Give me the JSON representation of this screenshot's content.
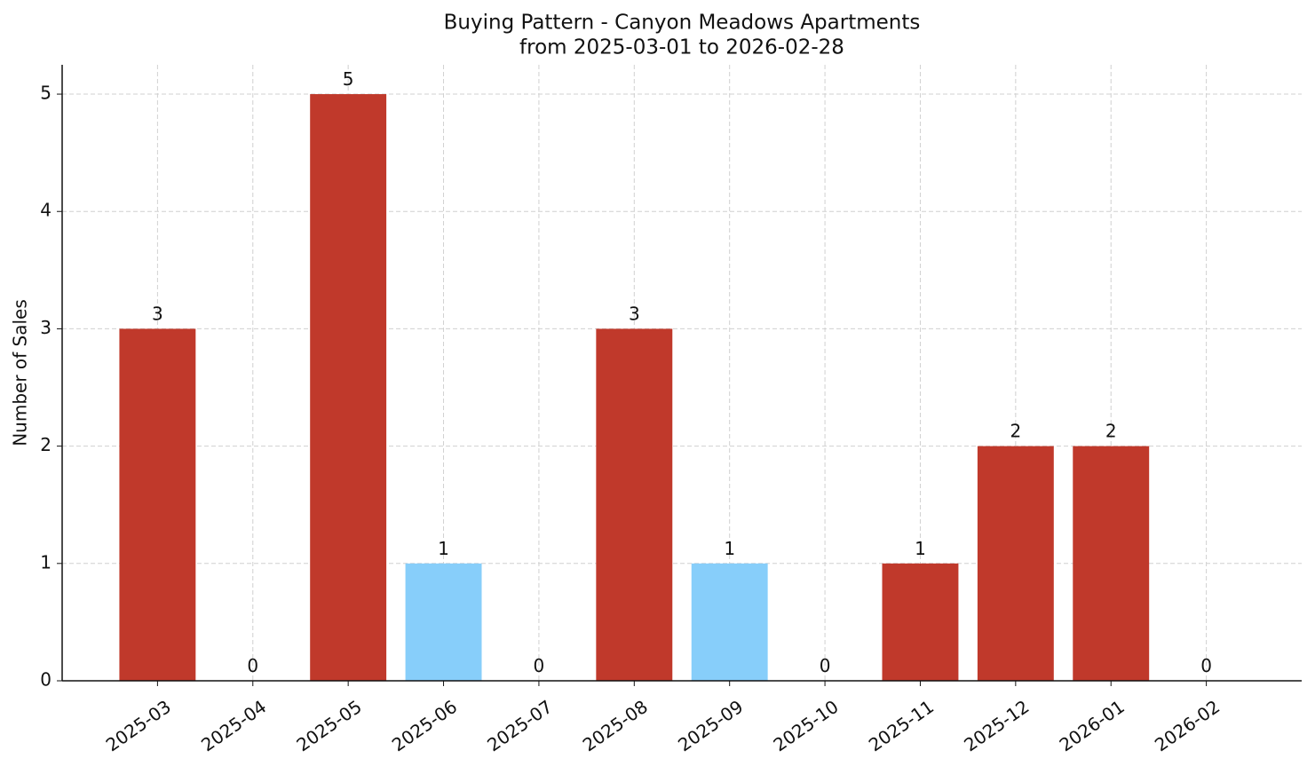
{
  "chart_data": {
    "type": "bar",
    "title": "Buying Pattern - Canyon Meadows Apartments",
    "subtitle": "from 2025-03-01 to 2026-02-28",
    "y_label": "Number of Sales",
    "categories": [
      "2025-03",
      "2025-04",
      "2025-05",
      "2025-06",
      "2025-07",
      "2025-08",
      "2025-09",
      "2025-10",
      "2025-11",
      "2025-12",
      "2026-01",
      "2026-02"
    ],
    "values": [
      3,
      0,
      5,
      1,
      0,
      3,
      1,
      0,
      1,
      2,
      2,
      0
    ],
    "colors": [
      "#c0392b",
      "#c0392b",
      "#c0392b",
      "#87cefa",
      "#c0392b",
      "#c0392b",
      "#87cefa",
      "#c0392b",
      "#c0392b",
      "#c0392b",
      "#c0392b",
      "#c0392b"
    ],
    "ylim": [
      0,
      5.25
    ],
    "yticks": [
      0,
      1,
      2,
      3,
      4,
      5
    ],
    "grid": true
  }
}
